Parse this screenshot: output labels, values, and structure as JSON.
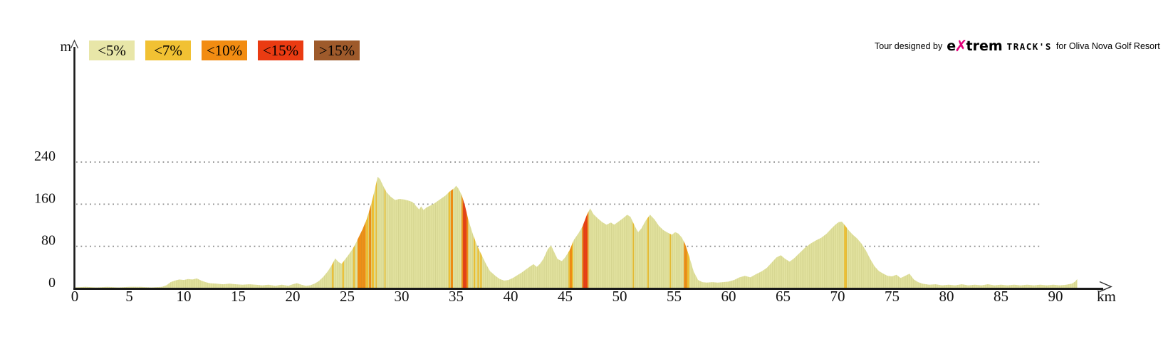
{
  "page": {
    "background": "#ffffff"
  },
  "legend": {
    "items": [
      {
        "label": "<5%",
        "key": "lt5"
      },
      {
        "label": "<7%",
        "key": "lt7"
      },
      {
        "label": "<10%",
        "key": "lt10"
      },
      {
        "label": "<15%",
        "key": "lt15"
      },
      {
        "label": ">15%",
        "key": "gt15"
      }
    ]
  },
  "logo": {
    "prefix": "Tour designed by",
    "brand_e": "e",
    "brand_x": "✗",
    "brand_rest": "trem",
    "tracks": "TRACK'S",
    "suffix": "for Oliva Nova Golf Resort",
    "x_color": "#E2007A"
  },
  "chart_data": {
    "type": "area",
    "title": "",
    "xlabel": "km",
    "ylabel": "m",
    "xlim": [
      0,
      95
    ],
    "ylim": [
      0,
      320
    ],
    "grid": "dotted horizontal",
    "legend_position": "top-left",
    "x_ticks": [
      0,
      5,
      10,
      15,
      20,
      25,
      30,
      35,
      40,
      45,
      50,
      55,
      60,
      65,
      70,
      75,
      80,
      85,
      90
    ],
    "y_ticks": [
      0,
      80,
      160,
      240
    ],
    "y_gridlines": [
      80,
      160,
      240
    ],
    "colors": {
      "lt5": "#E8E6A8",
      "lt7": "#F1C133",
      "lt10": "#F28C12",
      "lt15": "#EA3B12",
      "gt15": "#9E5A2B",
      "profile_fill": "#E3E3A0",
      "hatch": "rgba(150,148,70,0.20)",
      "grid": "#8a8a8a",
      "axis": "#1a1a1a",
      "tick_text": "#111111"
    },
    "profile_km_m": [
      [
        0,
        2
      ],
      [
        1,
        3
      ],
      [
        2,
        2
      ],
      [
        3,
        3
      ],
      [
        4,
        2
      ],
      [
        5,
        3
      ],
      [
        6,
        3
      ],
      [
        7,
        2
      ],
      [
        8,
        3
      ],
      [
        8.4,
        6
      ],
      [
        8.8,
        12
      ],
      [
        9.2,
        15
      ],
      [
        9.6,
        17
      ],
      [
        10,
        16
      ],
      [
        10.4,
        18
      ],
      [
        10.8,
        17
      ],
      [
        11.2,
        19
      ],
      [
        11.6,
        15
      ],
      [
        12,
        12
      ],
      [
        12.4,
        10
      ],
      [
        13,
        9
      ],
      [
        13.6,
        8
      ],
      [
        14.2,
        9
      ],
      [
        14.8,
        8
      ],
      [
        15.4,
        7
      ],
      [
        16,
        8
      ],
      [
        16.6,
        7
      ],
      [
        17.2,
        6
      ],
      [
        17.8,
        7
      ],
      [
        18.4,
        5
      ],
      [
        19,
        7
      ],
      [
        19.6,
        5
      ],
      [
        20,
        8
      ],
      [
        20.4,
        10
      ],
      [
        20.8,
        7
      ],
      [
        21.2,
        5
      ],
      [
        21.6,
        6
      ],
      [
        22,
        9
      ],
      [
        22.4,
        14
      ],
      [
        22.8,
        22
      ],
      [
        23.2,
        32
      ],
      [
        23.6,
        45
      ],
      [
        23.9,
        57
      ],
      [
        24.2,
        50
      ],
      [
        24.5,
        47
      ],
      [
        24.8,
        55
      ],
      [
        25.1,
        63
      ],
      [
        25.4,
        72
      ],
      [
        25.7,
        82
      ],
      [
        26,
        95
      ],
      [
        26.4,
        112
      ],
      [
        26.8,
        132
      ],
      [
        27.2,
        160
      ],
      [
        27.5,
        185
      ],
      [
        27.8,
        212
      ],
      [
        28,
        208
      ],
      [
        28.3,
        195
      ],
      [
        28.6,
        183
      ],
      [
        29,
        174
      ],
      [
        29.4,
        168
      ],
      [
        29.8,
        170
      ],
      [
        30.2,
        169
      ],
      [
        30.6,
        167
      ],
      [
        31,
        164
      ],
      [
        31.3,
        157
      ],
      [
        31.6,
        150
      ],
      [
        31.8,
        156
      ],
      [
        32,
        149
      ],
      [
        32.3,
        154
      ],
      [
        32.7,
        158
      ],
      [
        33.1,
        163
      ],
      [
        33.5,
        169
      ],
      [
        34,
        176
      ],
      [
        34.4,
        184
      ],
      [
        34.8,
        190
      ],
      [
        35,
        195
      ],
      [
        35.2,
        190
      ],
      [
        35.5,
        178
      ],
      [
        35.8,
        158
      ],
      [
        36.1,
        132
      ],
      [
        36.5,
        105
      ],
      [
        36.9,
        82
      ],
      [
        37.3,
        65
      ],
      [
        37.7,
        48
      ],
      [
        38.1,
        33
      ],
      [
        38.6,
        24
      ],
      [
        39,
        18
      ],
      [
        39.4,
        15
      ],
      [
        39.8,
        16
      ],
      [
        40.2,
        20
      ],
      [
        40.6,
        25
      ],
      [
        41,
        30
      ],
      [
        41.4,
        36
      ],
      [
        41.8,
        42
      ],
      [
        42.1,
        46
      ],
      [
        42.4,
        41
      ],
      [
        42.7,
        47
      ],
      [
        43,
        56
      ],
      [
        43.4,
        74
      ],
      [
        43.7,
        82
      ],
      [
        44,
        69
      ],
      [
        44.3,
        56
      ],
      [
        44.7,
        52
      ],
      [
        45,
        59
      ],
      [
        45.4,
        72
      ],
      [
        45.8,
        92
      ],
      [
        46.2,
        104
      ],
      [
        46.6,
        118
      ],
      [
        47,
        140
      ],
      [
        47.3,
        152
      ],
      [
        47.6,
        141
      ],
      [
        48,
        133
      ],
      [
        48.4,
        126
      ],
      [
        48.8,
        121
      ],
      [
        49.2,
        125
      ],
      [
        49.5,
        121
      ],
      [
        49.9,
        127
      ],
      [
        50.3,
        133
      ],
      [
        50.7,
        140
      ],
      [
        51,
        136
      ],
      [
        51.4,
        118
      ],
      [
        51.7,
        107
      ],
      [
        52,
        114
      ],
      [
        52.4,
        129
      ],
      [
        52.8,
        140
      ],
      [
        53.2,
        131
      ],
      [
        53.6,
        119
      ],
      [
        54,
        111
      ],
      [
        54.4,
        106
      ],
      [
        54.8,
        102
      ],
      [
        55.1,
        107
      ],
      [
        55.4,
        104
      ],
      [
        55.7,
        97
      ],
      [
        56,
        85
      ],
      [
        56.4,
        60
      ],
      [
        56.8,
        32
      ],
      [
        57.2,
        16
      ],
      [
        57.6,
        12
      ],
      [
        58,
        11
      ],
      [
        58.5,
        12
      ],
      [
        59,
        11
      ],
      [
        59.5,
        12
      ],
      [
        60,
        13
      ],
      [
        60.5,
        16
      ],
      [
        61,
        21
      ],
      [
        61.5,
        24
      ],
      [
        62,
        21
      ],
      [
        62.5,
        27
      ],
      [
        63,
        32
      ],
      [
        63.5,
        39
      ],
      [
        64,
        50
      ],
      [
        64.4,
        59
      ],
      [
        64.8,
        63
      ],
      [
        65.2,
        56
      ],
      [
        65.6,
        51
      ],
      [
        66,
        57
      ],
      [
        66.5,
        67
      ],
      [
        67,
        77
      ],
      [
        67.5,
        85
      ],
      [
        68,
        91
      ],
      [
        68.5,
        96
      ],
      [
        69,
        104
      ],
      [
        69.4,
        113
      ],
      [
        69.8,
        121
      ],
      [
        70.1,
        126
      ],
      [
        70.4,
        127
      ],
      [
        70.7,
        119
      ],
      [
        71,
        111
      ],
      [
        71.4,
        102
      ],
      [
        71.8,
        95
      ],
      [
        72.2,
        85
      ],
      [
        72.6,
        72
      ],
      [
        73,
        56
      ],
      [
        73.4,
        42
      ],
      [
        73.8,
        33
      ],
      [
        74.2,
        28
      ],
      [
        74.6,
        24
      ],
      [
        75,
        23
      ],
      [
        75.4,
        26
      ],
      [
        75.8,
        20
      ],
      [
        76.2,
        24
      ],
      [
        76.6,
        28
      ],
      [
        77,
        17
      ],
      [
        77.4,
        12
      ],
      [
        77.8,
        9
      ],
      [
        78.4,
        7
      ],
      [
        79,
        8
      ],
      [
        79.6,
        6
      ],
      [
        80.2,
        7
      ],
      [
        80.8,
        6
      ],
      [
        81.4,
        8
      ],
      [
        82,
        6
      ],
      [
        82.6,
        7
      ],
      [
        83.2,
        6
      ],
      [
        83.8,
        8
      ],
      [
        84.4,
        6
      ],
      [
        85,
        7
      ],
      [
        85.6,
        6
      ],
      [
        86.2,
        7
      ],
      [
        86.8,
        6
      ],
      [
        87.4,
        7
      ],
      [
        88,
        6
      ],
      [
        88.6,
        7
      ],
      [
        89.2,
        6
      ],
      [
        89.8,
        7
      ],
      [
        90.4,
        6
      ],
      [
        91,
        7
      ],
      [
        91.5,
        9
      ],
      [
        91.8,
        13
      ],
      [
        92,
        18
      ]
    ],
    "gradient_bands": [
      [
        23.6,
        23.75,
        "lt7"
      ],
      [
        24.55,
        24.7,
        "lt7"
      ],
      [
        25.55,
        25.7,
        "lt7"
      ],
      [
        25.95,
        26.15,
        "lt10"
      ],
      [
        26.15,
        26.45,
        "lt10"
      ],
      [
        26.45,
        26.7,
        "lt10"
      ],
      [
        26.72,
        26.95,
        "lt7"
      ],
      [
        27.0,
        27.2,
        "lt10"
      ],
      [
        27.25,
        27.45,
        "lt7"
      ],
      [
        27.6,
        27.72,
        "lt7"
      ],
      [
        28.42,
        28.52,
        "lt7"
      ],
      [
        34.3,
        34.45,
        "lt7"
      ],
      [
        34.5,
        34.7,
        "lt10"
      ],
      [
        35.5,
        35.62,
        "lt10"
      ],
      [
        35.62,
        35.95,
        "lt15"
      ],
      [
        35.95,
        36.1,
        "lt10"
      ],
      [
        36.6,
        36.75,
        "lt7"
      ],
      [
        36.95,
        37.1,
        "lt7"
      ],
      [
        37.2,
        37.35,
        "lt7"
      ],
      [
        45.3,
        45.42,
        "lt7"
      ],
      [
        45.42,
        45.62,
        "lt10"
      ],
      [
        45.62,
        45.75,
        "lt7"
      ],
      [
        46.55,
        46.65,
        "lt10"
      ],
      [
        46.65,
        47.05,
        "lt15"
      ],
      [
        47.05,
        47.15,
        "lt10"
      ],
      [
        51.2,
        51.32,
        "lt7"
      ],
      [
        52.55,
        52.68,
        "lt7"
      ],
      [
        54.6,
        54.72,
        "lt7"
      ],
      [
        55.9,
        56.2,
        "lt10"
      ],
      [
        56.2,
        56.4,
        "lt7"
      ],
      [
        70.6,
        70.85,
        "lt7"
      ]
    ]
  }
}
